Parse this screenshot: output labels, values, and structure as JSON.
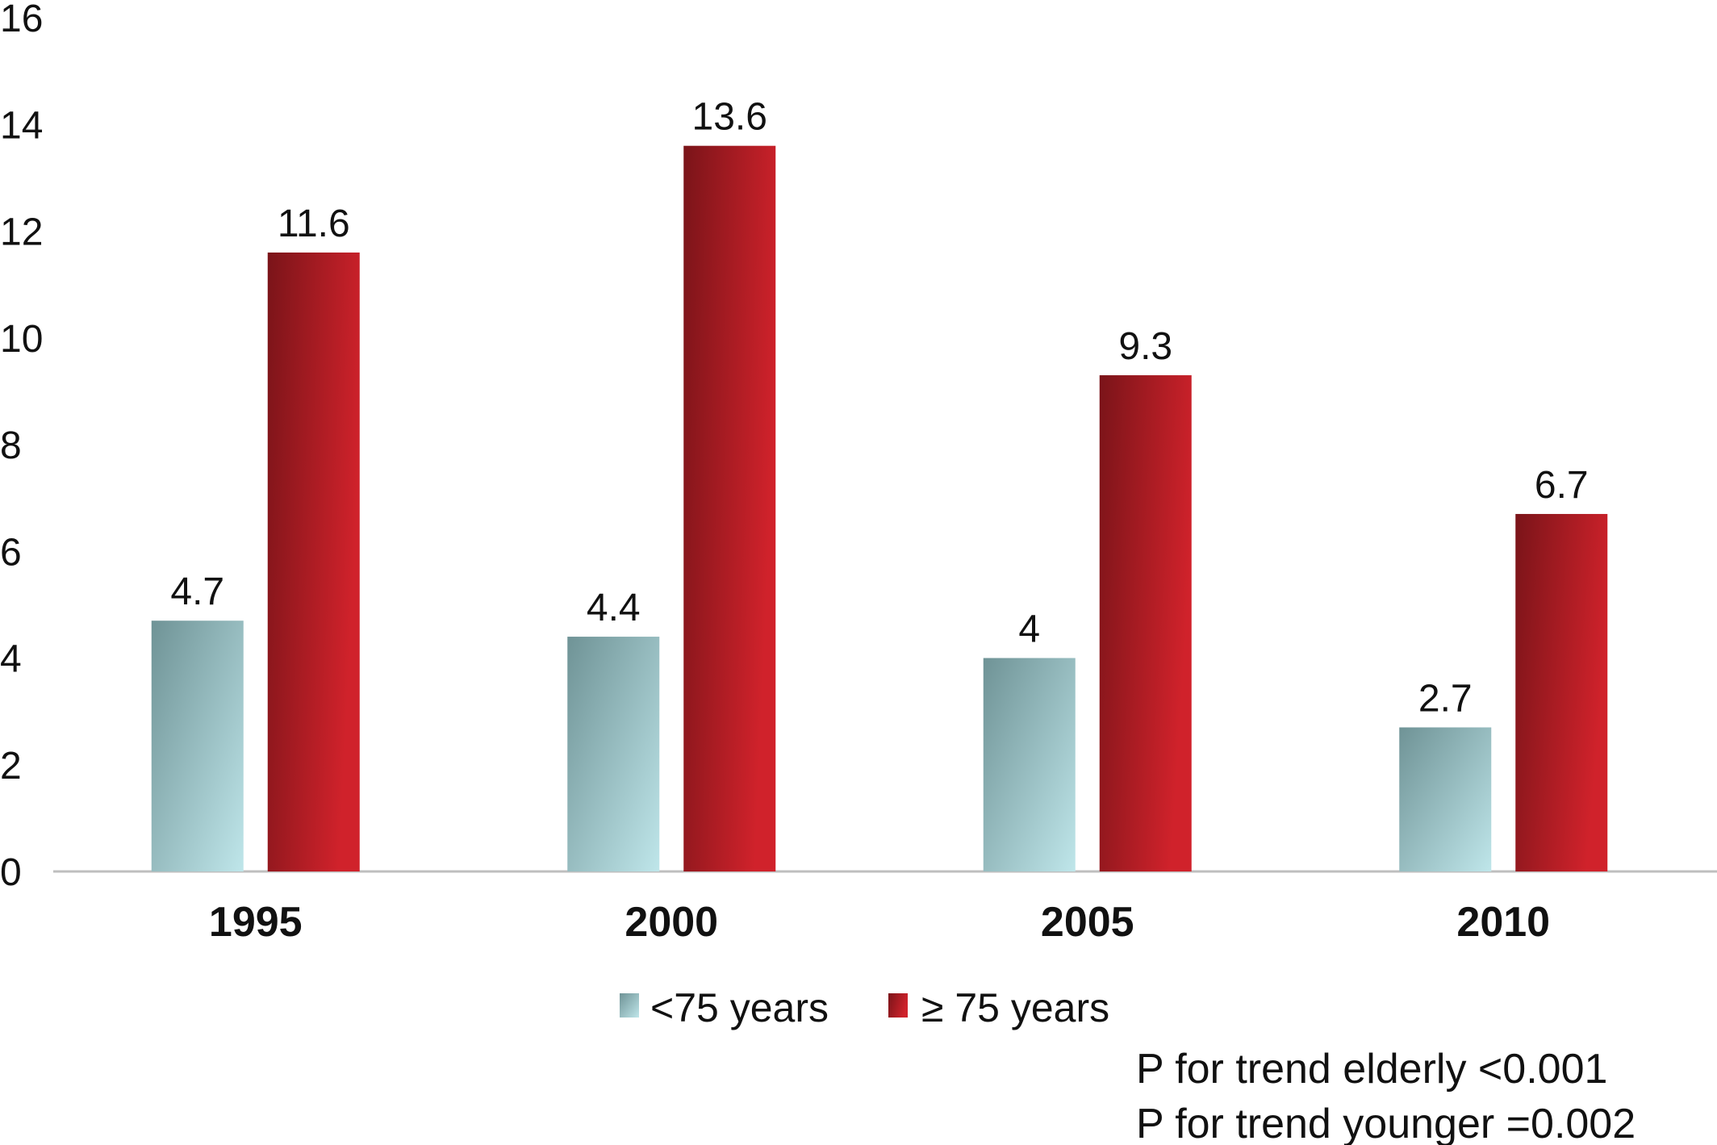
{
  "chart_data": {
    "type": "bar",
    "categories": [
      "1995",
      "2000",
      "2005",
      "2010"
    ],
    "series": [
      {
        "name": "<75 years",
        "values": [
          4.7,
          4.4,
          4,
          2.7
        ],
        "color": "#9ec9cc"
      },
      {
        "name": "≥ 75 years",
        "values": [
          11.6,
          13.6,
          9.3,
          6.7
        ],
        "color": "#b51c24"
      }
    ],
    "data_labels": [
      [
        "4.7",
        "4.4",
        "4",
        "2.7"
      ],
      [
        "11.6",
        "13.6",
        "9.3",
        "6.7"
      ]
    ],
    "yticks": [
      0,
      2,
      4,
      6,
      8,
      10,
      12,
      14,
      16
    ],
    "ylim": [
      0,
      16
    ],
    "title": "",
    "xlabel": "",
    "ylabel": "",
    "legend_position": "bottom-center",
    "annotations": [
      "P for trend elderly <0.001",
      "P for trend younger =0.002"
    ]
  }
}
